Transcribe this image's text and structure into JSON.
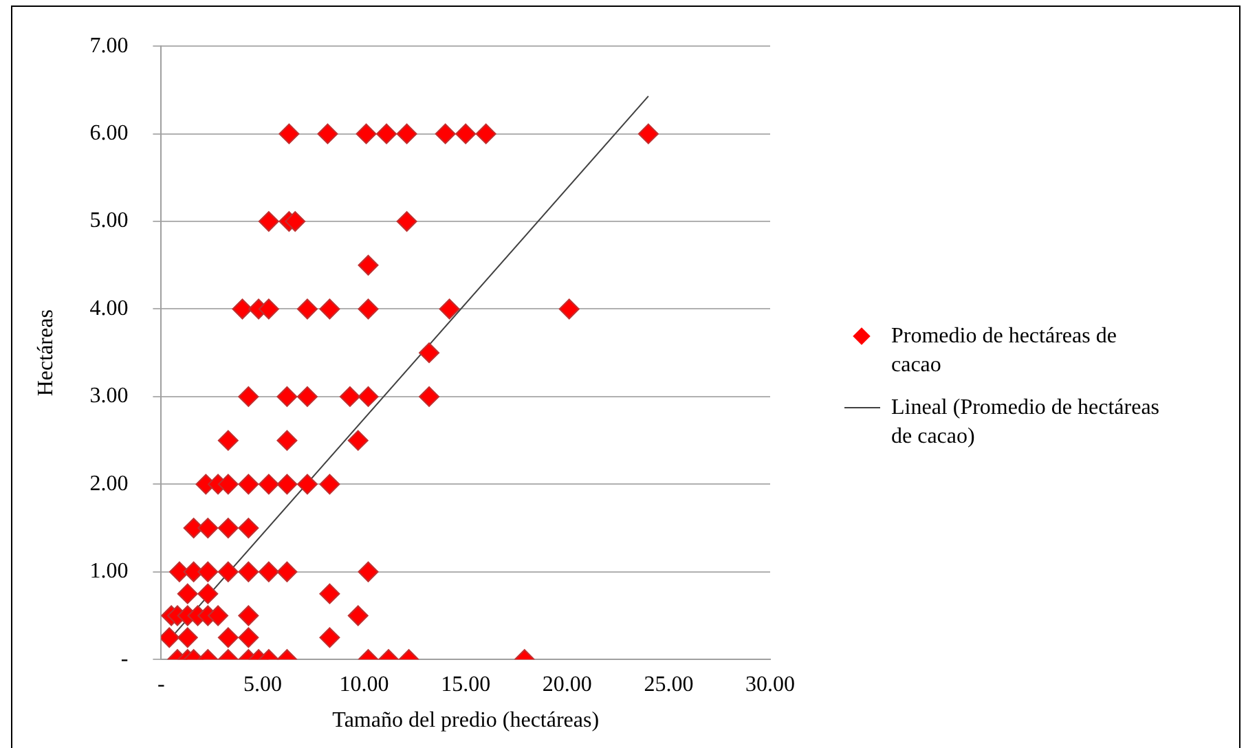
{
  "chart_data": {
    "type": "scatter",
    "xlabel": "Tamaño del predio (hectáreas)",
    "ylabel": "Hectáreas",
    "xlim": [
      0,
      30
    ],
    "ylim": [
      0,
      7
    ],
    "xticks": [
      {
        "value": 0,
        "label": "-"
      },
      {
        "value": 5,
        "label": "5.00"
      },
      {
        "value": 10,
        "label": "10.00"
      },
      {
        "value": 15,
        "label": "15.00"
      },
      {
        "value": 20,
        "label": "20.00"
      },
      {
        "value": 25,
        "label": "25.00"
      },
      {
        "value": 30,
        "label": "30.00"
      }
    ],
    "yticks": [
      {
        "value": 0,
        "label": "-"
      },
      {
        "value": 1,
        "label": "1.00"
      },
      {
        "value": 2,
        "label": "2.00"
      },
      {
        "value": 3,
        "label": "3.00"
      },
      {
        "value": 4,
        "label": "4.00"
      },
      {
        "value": 5,
        "label": "5.00"
      },
      {
        "value": 6,
        "label": "6.00"
      },
      {
        "value": 7,
        "label": "7.00"
      }
    ],
    "grid": "y",
    "legend": "right",
    "marker": "diamond",
    "series": [
      {
        "name": "Promedio de hectáreas de cacao",
        "color": "#ff0000",
        "x": [
          6.3,
          8.2,
          10.1,
          11.1,
          12.1,
          14.0,
          15.0,
          16.0,
          24.0,
          5.3,
          6.3,
          6.6,
          12.1,
          10.2,
          4.0,
          4.8,
          5.3,
          7.2,
          8.3,
          10.2,
          14.2,
          20.1,
          13.2,
          4.3,
          6.2,
          7.2,
          9.3,
          10.2,
          13.2,
          3.3,
          6.2,
          9.7,
          2.2,
          2.8,
          3.3,
          4.3,
          5.3,
          6.2,
          7.2,
          8.3,
          1.6,
          2.3,
          3.3,
          4.3,
          0.9,
          1.6,
          2.3,
          3.3,
          4.3,
          5.3,
          6.2,
          10.2,
          1.3,
          2.3,
          8.3,
          0.5,
          0.8,
          1.3,
          1.8,
          2.3,
          2.8,
          4.3,
          9.7,
          0.4,
          1.3,
          3.3,
          4.3,
          8.3,
          0.8,
          1.3,
          1.6,
          2.3,
          3.3,
          4.3,
          4.8,
          5.3,
          6.2,
          10.2,
          11.2,
          12.2,
          17.9
        ],
        "values": [
          6,
          6,
          6,
          6,
          6,
          6,
          6,
          6,
          6,
          5,
          5,
          5,
          5,
          4.5,
          4,
          4,
          4,
          4,
          4,
          4,
          4,
          4,
          3.5,
          3,
          3,
          3,
          3,
          3,
          3,
          2.5,
          2.5,
          2.5,
          2,
          2,
          2,
          2,
          2,
          2,
          2,
          2,
          1.5,
          1.5,
          1.5,
          1.5,
          1,
          1,
          1,
          1,
          1,
          1,
          1,
          1,
          0.75,
          0.75,
          0.75,
          0.5,
          0.5,
          0.5,
          0.5,
          0.5,
          0.5,
          0.5,
          0.5,
          0.25,
          0.25,
          0.25,
          0.25,
          0.25,
          0,
          0,
          0,
          0,
          0,
          0,
          0,
          0,
          0,
          0,
          0,
          0,
          0
        ]
      },
      {
        "name": "Lineal (Promedio de hectáreas de cacao)",
        "color": "#404040",
        "type": "line",
        "marker": "none",
        "line_style": "solid",
        "x": [
          0.5,
          24.0
        ],
        "values": [
          0.25,
          6.43
        ]
      }
    ]
  }
}
